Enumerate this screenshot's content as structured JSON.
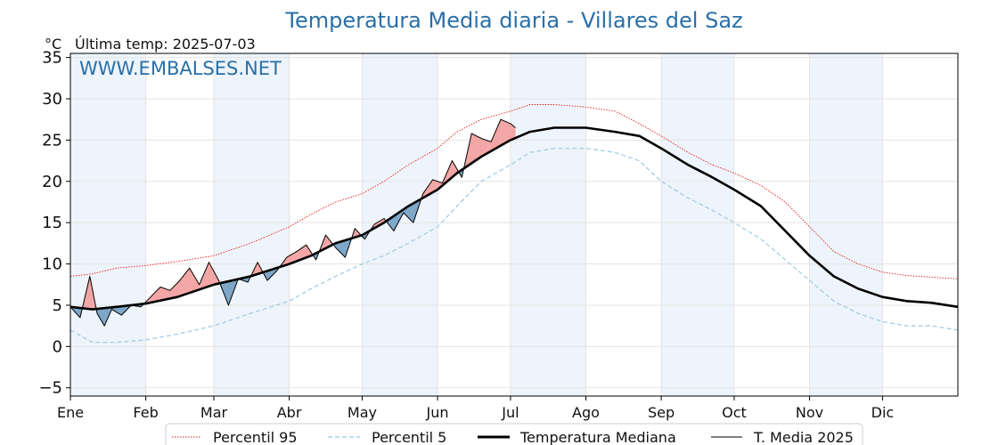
{
  "chart_data": {
    "type": "line",
    "title": "Temperatura Media diaria - Villares del Saz",
    "unit": "°C",
    "last_temp_label": "Última temp: 2025-07-03",
    "watermark": "WWW.EMBALSES.NET",
    "ylim": [
      -6,
      35.5
    ],
    "yticks": [
      -5,
      0,
      5,
      10,
      15,
      20,
      25,
      30,
      35
    ],
    "xlim": [
      1,
      366
    ],
    "month_labels": [
      "Ene",
      "Feb",
      "Mar",
      "Abr",
      "May",
      "Jun",
      "Jul",
      "Ago",
      "Sep",
      "Oct",
      "Nov",
      "Dic"
    ],
    "month_start_days": [
      1,
      32,
      60,
      91,
      121,
      152,
      182,
      213,
      244,
      274,
      305,
      335
    ],
    "grid": true,
    "legend_position": "bottom",
    "colors": {
      "p95": "#e41a1c",
      "p5": "#9ecae1",
      "median": "#000000",
      "current": "#000000",
      "above_fill": "#f4a6a6",
      "above_fill_strong": "#e8484d",
      "below_fill": "#7ea7c9",
      "below_fill_strong": "#1f5f99",
      "month_shade": "#eef4fb"
    },
    "series": [
      {
        "name": "Percentil 95",
        "style": "dotted-red",
        "x": [
          1,
          10,
          20,
          32,
          45,
          60,
          75,
          91,
          100,
          110,
          121,
          130,
          140,
          152,
          160,
          170,
          182,
          190,
          200,
          213,
          225,
          235,
          244,
          255,
          265,
          274,
          285,
          295,
          305,
          315,
          325,
          335,
          345,
          355,
          366
        ],
        "y": [
          8.5,
          8.8,
          9.5,
          9.8,
          10.3,
          11.0,
          12.5,
          14.5,
          16.0,
          17.5,
          18.5,
          20.0,
          22.0,
          24.0,
          26.0,
          27.5,
          28.5,
          29.3,
          29.3,
          29.0,
          28.5,
          27.0,
          25.5,
          23.5,
          22.0,
          21.0,
          19.5,
          17.5,
          14.5,
          11.5,
          10.0,
          9.0,
          8.6,
          8.4,
          8.2
        ]
      },
      {
        "name": "Percentil 5",
        "style": "dashed-lightblue",
        "x": [
          1,
          10,
          20,
          32,
          45,
          60,
          75,
          91,
          100,
          110,
          121,
          130,
          140,
          152,
          160,
          170,
          182,
          190,
          200,
          213,
          225,
          235,
          244,
          255,
          265,
          274,
          285,
          295,
          305,
          315,
          325,
          335,
          345,
          355,
          366
        ],
        "y": [
          2.0,
          0.5,
          0.5,
          0.8,
          1.5,
          2.5,
          4.0,
          5.5,
          7.0,
          8.5,
          10.0,
          11.0,
          12.5,
          14.5,
          17.0,
          20.0,
          22.0,
          23.5,
          24.0,
          24.0,
          23.5,
          22.5,
          20.0,
          18.0,
          16.5,
          15.0,
          13.0,
          10.5,
          8.0,
          5.5,
          4.0,
          3.0,
          2.5,
          2.5,
          2.0
        ]
      },
      {
        "name": "Temperatura Mediana",
        "style": "thick-black",
        "x": [
          1,
          10,
          20,
          32,
          45,
          60,
          75,
          91,
          100,
          110,
          121,
          130,
          140,
          152,
          160,
          170,
          182,
          190,
          200,
          213,
          225,
          235,
          244,
          255,
          265,
          274,
          285,
          295,
          305,
          315,
          325,
          335,
          345,
          355,
          366
        ],
        "y": [
          4.8,
          4.5,
          4.8,
          5.2,
          6.0,
          7.5,
          8.5,
          10.0,
          11.0,
          12.5,
          13.5,
          15.0,
          17.0,
          19.0,
          21.0,
          23.0,
          25.0,
          26.0,
          26.5,
          26.5,
          26.0,
          25.5,
          24.0,
          22.0,
          20.5,
          19.0,
          17.0,
          14.0,
          11.0,
          8.5,
          7.0,
          6.0,
          5.5,
          5.3,
          4.8
        ]
      },
      {
        "name": "T. Media 2025",
        "style": "thin-black",
        "x": [
          1,
          5,
          9,
          12,
          15,
          18,
          22,
          26,
          30,
          34,
          38,
          42,
          46,
          50,
          54,
          58,
          62,
          66,
          70,
          74,
          78,
          82,
          86,
          90,
          94,
          98,
          102,
          106,
          110,
          114,
          118,
          122,
          126,
          130,
          134,
          138,
          142,
          146,
          150,
          154,
          158,
          162,
          166,
          170,
          174,
          178,
          182,
          184
        ],
        "y": [
          4.8,
          3.5,
          8.5,
          4.0,
          2.5,
          4.5,
          3.8,
          5.0,
          4.8,
          6.0,
          7.2,
          6.8,
          8.0,
          9.5,
          7.5,
          10.2,
          8.0,
          5.0,
          8.2,
          7.8,
          10.2,
          8.0,
          9.2,
          10.8,
          11.5,
          12.3,
          10.5,
          13.5,
          12.0,
          10.8,
          14.3,
          13.0,
          14.8,
          15.5,
          14.0,
          16.2,
          15.0,
          18.5,
          20.2,
          19.8,
          22.5,
          20.5,
          25.8,
          25.2,
          24.8,
          27.5,
          27.0,
          26.5
        ]
      }
    ]
  },
  "legend": {
    "items": [
      {
        "label": "Percentil 95"
      },
      {
        "label": "Percentil 5"
      },
      {
        "label": "Temperatura Mediana"
      },
      {
        "label": "T. Media 2025"
      }
    ]
  }
}
